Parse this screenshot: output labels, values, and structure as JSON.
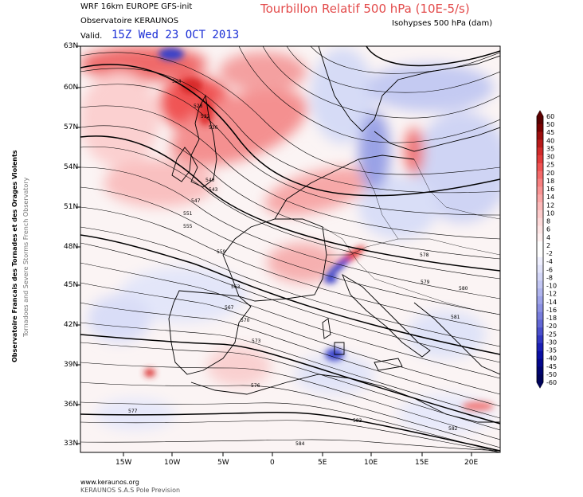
{
  "header": {
    "model": "WRF 16km EUROPE  GFS-init",
    "org": "Observatoire KERAUNOS",
    "valid_label": "Valid.",
    "valid_time": "15Z Wed 23 OCT 2013",
    "title": "Tourbillon Relatif 500 hPa (10E-5/s)",
    "subtitle": "Isohypses 500 hPa (dam)"
  },
  "side_text": {
    "line1": "Observatoire Francais des Tornades et des Orages Violents",
    "line2": "Tornadoes and Severe Storms French Observatory"
  },
  "footer": {
    "url": "www.keraunos.org",
    "company": "KERAUNOS S.A.S Pole Prevision"
  },
  "lat_labels": [
    "63N",
    "60N",
    "57N",
    "54N",
    "51N",
    "48N",
    "45N",
    "42N",
    "39N",
    "36N",
    "33N"
  ],
  "lon_labels": [
    "15W",
    "10W",
    "5W",
    "0",
    "5E",
    "10E",
    "15E",
    "20E"
  ],
  "colorbar": {
    "labels": [
      "60",
      "50",
      "45",
      "40",
      "35",
      "30",
      "25",
      "20",
      "18",
      "16",
      "14",
      "12",
      "10",
      "8",
      "6",
      "4",
      "2",
      "-2",
      "-4",
      "-6",
      "-8",
      "-10",
      "-12",
      "-14",
      "-16",
      "-18",
      "-20",
      "-25",
      "-30",
      "-35",
      "-40",
      "-45",
      "-50",
      "-60"
    ],
    "colors": [
      "#5a0000",
      "#7a0000",
      "#9c0d0d",
      "#b81a1a",
      "#d12a2a",
      "#e23b3b",
      "#ef5353",
      "#f46a6a",
      "#f78080",
      "#f99494",
      "#fba7a7",
      "#fcbaba",
      "#fdcbcb",
      "#fed9d9",
      "#fee5e5",
      "#fff0f0",
      "#ffffff",
      "#ffffff",
      "#f0f0ff",
      "#e2e4fb",
      "#d3d6f7",
      "#c2c6f3",
      "#b0b5ee",
      "#9ea3e9",
      "#8b90e3",
      "#777cdc",
      "#6267d5",
      "#4a4fcc",
      "#3237c2",
      "#1b1fb5",
      "#0a0ea3",
      "#03068c",
      "#000470",
      "#00035a"
    ]
  },
  "contour_labels": [
    "524",
    "528",
    "532",
    "536",
    "540",
    "543",
    "547",
    "551",
    "555",
    "559",
    "563",
    "567",
    "570",
    "573",
    "576",
    "577",
    "578",
    "579",
    "580",
    "581",
    "582",
    "583",
    "584"
  ]
}
